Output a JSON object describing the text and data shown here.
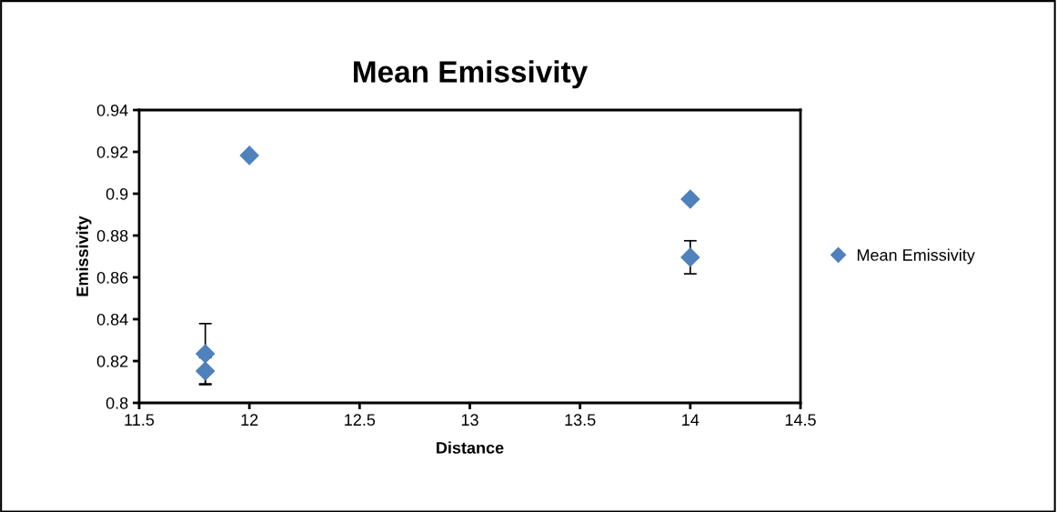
{
  "chart_data": {
    "type": "scatter",
    "title": "Mean Emissivity",
    "xlabel": "Distance",
    "ylabel": "Emissivity",
    "x": [
      11.8,
      11.8,
      12,
      14,
      14
    ],
    "series": [
      {
        "name": "Mean Emissivity",
        "color": "#4f81bd",
        "values": [
          0.8235,
          0.8152,
          0.9183,
          0.8974,
          0.8696
        ],
        "errors": [
          0.0144,
          0.0065,
          null,
          null,
          0.0079
        ]
      }
    ],
    "xlim": [
      11.5,
      14.5
    ],
    "xticks": [
      11.5,
      12,
      12.5,
      13,
      13.5,
      14,
      14.5
    ],
    "ylim": [
      0.8,
      0.94
    ],
    "yticks": [
      0.8,
      0.82,
      0.84,
      0.86,
      0.88,
      0.9,
      0.92,
      0.94
    ],
    "marker": "diamond",
    "legend": "right",
    "grid": false
  }
}
